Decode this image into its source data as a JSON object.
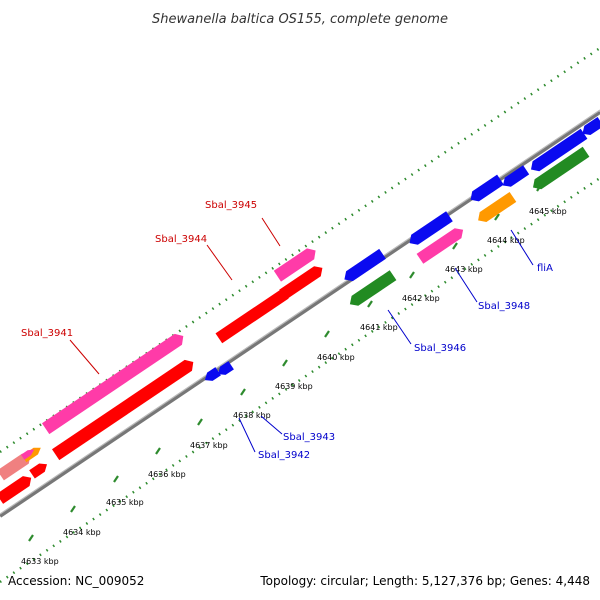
{
  "title": "Shewanella baltica OS155, complete genome",
  "footer": {
    "accession": "Accession: NC_009052",
    "summary": "Topology: circular; Length: 5,127,376 bp; Genes: 4,448"
  },
  "colors": {
    "backbone": "#8c8c8c",
    "dots": "#2e8b2e",
    "forward_label": "#cc0000",
    "reverse_label": "#0000cc",
    "red": "#ff0000",
    "pink": "#ff3ba8",
    "blue": "#0a0af0",
    "green": "#228b22",
    "orange": "#ff9900",
    "light_red": "#f08080"
  },
  "ticks": [
    {
      "label": "4633 kbp"
    },
    {
      "label": "4634 kbp"
    },
    {
      "label": "4635 kbp"
    },
    {
      "label": "4636 kbp"
    },
    {
      "label": "4637 kbp"
    },
    {
      "label": "4638 kbp"
    },
    {
      "label": "4639 kbp"
    },
    {
      "label": "4640 kbp"
    },
    {
      "label": "4641 kbp"
    },
    {
      "label": "4642 kbp"
    },
    {
      "label": "4643 kbp"
    },
    {
      "label": "4644 kbp"
    },
    {
      "label": "4645 kbp"
    }
  ],
  "gene_labels": [
    {
      "text": "Sbal_3945",
      "strand": "forward"
    },
    {
      "text": "Sbal_3944",
      "strand": "forward"
    },
    {
      "text": "Sbal_3941",
      "strand": "forward"
    },
    {
      "text": "Sbal_3948",
      "strand": "reverse"
    },
    {
      "text": "fliA",
      "strand": "reverse"
    },
    {
      "text": "Sbal_3946",
      "strand": "reverse"
    },
    {
      "text": "Sbal_3943",
      "strand": "reverse"
    },
    {
      "text": "Sbal_3942",
      "strand": "reverse"
    }
  ]
}
